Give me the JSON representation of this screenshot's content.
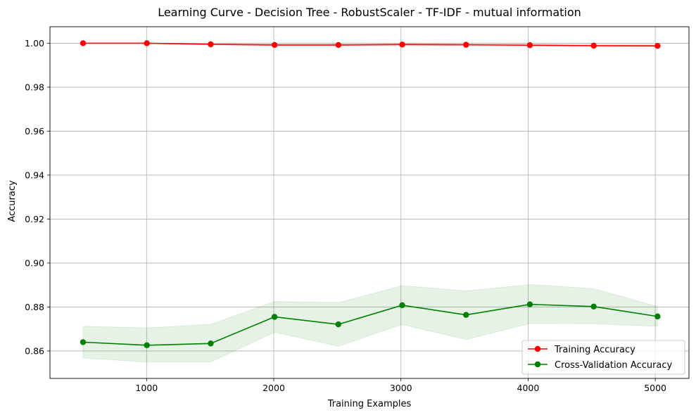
{
  "chart_data": {
    "type": "line",
    "title": "Learning Curve - Decision Tree - RobustScaler - TF-IDF - mutual information",
    "xlabel": "Training Examples",
    "ylabel": "Accuracy",
    "xlim": [
      240,
      5265
    ],
    "ylim": [
      0.8475,
      1.0075
    ],
    "xticks": [
      1000,
      2000,
      3000,
      4000,
      5000
    ],
    "xtick_labels": [
      "1000",
      "2000",
      "3000",
      "4000",
      "5000"
    ],
    "yticks": [
      0.86,
      0.88,
      0.9,
      0.92,
      0.94,
      0.96,
      0.98,
      1.0
    ],
    "ytick_labels": [
      "0.86",
      "0.88",
      "0.90",
      "0.92",
      "0.94",
      "0.96",
      "0.98",
      "1.00"
    ],
    "grid": true,
    "legend_position": "lower-right",
    "x": [
      500,
      1002,
      1504,
      2006,
      2508,
      3010,
      3512,
      4014,
      4516,
      5018
    ],
    "series": [
      {
        "name": "Training Accuracy",
        "color": "#ff0000",
        "values": [
          1.0,
          1.0,
          0.9995,
          0.9992,
          0.9992,
          0.9994,
          0.9993,
          0.9991,
          0.9989,
          0.9988
        ],
        "band_low": [
          1.0,
          1.0,
          0.9992,
          0.9988,
          0.9988,
          0.999,
          0.9989,
          0.9986,
          0.9984,
          0.9983
        ],
        "band_high": [
          1.0,
          1.0,
          0.9998,
          0.9996,
          0.9996,
          0.9998,
          0.9997,
          0.9996,
          0.9994,
          0.9993
        ],
        "band_color": "#ff0000"
      },
      {
        "name": "Cross-Validation Accuracy",
        "color": "#008000",
        "values": [
          0.864,
          0.8626,
          0.8634,
          0.8755,
          0.8721,
          0.8808,
          0.8764,
          0.8812,
          0.8802,
          0.8757
        ],
        "band_low": [
          0.8568,
          0.855,
          0.855,
          0.8685,
          0.8622,
          0.872,
          0.8652,
          0.8725,
          0.8724,
          0.8712
        ],
        "band_high": [
          0.8712,
          0.8705,
          0.8721,
          0.8825,
          0.882,
          0.8897,
          0.8873,
          0.8902,
          0.8884,
          0.8802
        ],
        "band_color": "#008000"
      }
    ]
  }
}
